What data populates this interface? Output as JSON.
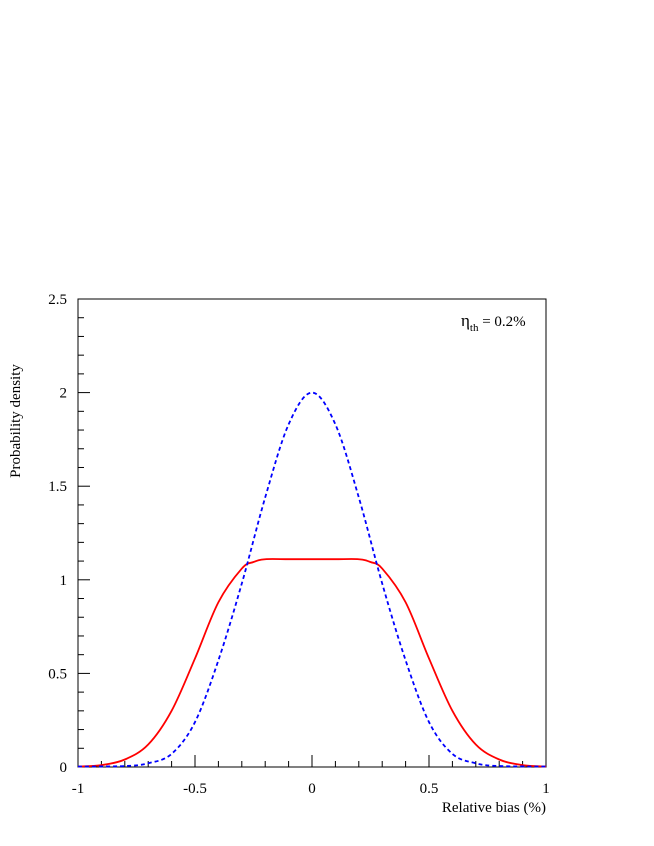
{
  "chart_data": {
    "type": "line",
    "title": "",
    "xlabel": "Relative bias (%)",
    "ylabel": "Probability density",
    "xlim": [
      -1,
      1
    ],
    "ylim": [
      0,
      2.5
    ],
    "x_ticks": [
      "-1",
      "-0.5",
      "0",
      "0.5",
      "1"
    ],
    "y_ticks": [
      "0",
      "0.5",
      "1",
      "1.5",
      "2",
      "2.5"
    ],
    "grid": false,
    "annotation": {
      "symbol": "η",
      "subscript": "th",
      "text": " = 0.2%"
    },
    "series": [
      {
        "color": "#ff0000",
        "style": "solid",
        "x": [
          -1.0,
          -0.9,
          -0.8,
          -0.7,
          -0.6,
          -0.5,
          -0.4,
          -0.3,
          -0.25,
          -0.2,
          -0.1,
          0.0,
          0.1,
          0.2,
          0.25,
          0.3,
          0.4,
          0.5,
          0.6,
          0.7,
          0.8,
          0.9,
          1.0
        ],
        "y": [
          0.002,
          0.01,
          0.04,
          0.12,
          0.3,
          0.58,
          0.88,
          1.06,
          1.095,
          1.11,
          1.11,
          1.11,
          1.11,
          1.11,
          1.095,
          1.06,
          0.88,
          0.58,
          0.3,
          0.12,
          0.04,
          0.01,
          0.002
        ]
      },
      {
        "color": "#0000ff",
        "style": "dashed",
        "x": [
          -1.0,
          -0.8,
          -0.7,
          -0.6,
          -0.5,
          -0.4,
          -0.3,
          -0.2,
          -0.1,
          0.0,
          0.1,
          0.2,
          0.3,
          0.4,
          0.5,
          0.6,
          0.7,
          0.8,
          1.0
        ],
        "y": [
          0.0,
          0.005,
          0.02,
          0.07,
          0.24,
          0.57,
          0.98,
          1.44,
          1.83,
          2.0,
          1.83,
          1.44,
          0.98,
          0.57,
          0.24,
          0.07,
          0.02,
          0.005,
          0.0
        ]
      }
    ]
  }
}
